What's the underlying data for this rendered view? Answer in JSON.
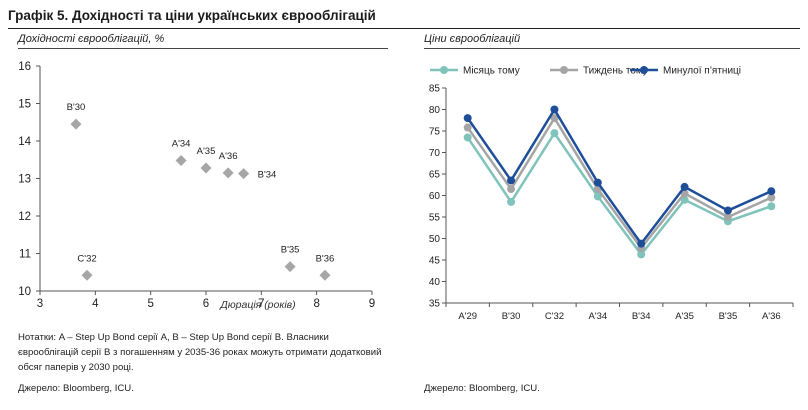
{
  "header": {
    "title": "Графік 5. Дохідності та ціни українських єврооблігацій"
  },
  "left_panel": {
    "subtitle": "Дохідності єврооблігацій, %",
    "note": "Нотатки: A – Step Up Bond серії A, B – Step Up Bond серії B. Власники єврооблігацій серії B з погашенням у 2035-36 роках можуть отримати додатковий обсяг паперів у 2030 році.",
    "source": "Джерело: Bloomberg, ICU."
  },
  "right_panel": {
    "subtitle": "Ціни єврооблігацій",
    "source": "Джерело: Bloomberg, ICU."
  },
  "colors": {
    "scatter_marker": "#a6a6a6",
    "month_ago": "#7fc3bb",
    "week_ago": "#a5a5a5",
    "last_friday": "#1f4e99",
    "axis": "#555555"
  },
  "chart_data": [
    {
      "type": "scatter",
      "title": "Дохідності єврооблігацій, %",
      "xlabel": "Дюрація (років)",
      "ylabel": "",
      "xlim": [
        3,
        9
      ],
      "ylim": [
        10,
        16
      ],
      "xticks": [
        3,
        4,
        5,
        6,
        7,
        8,
        9
      ],
      "yticks": [
        10,
        11,
        12,
        13,
        14,
        15,
        16
      ],
      "points": [
        {
          "label": "B'30",
          "x": 3.65,
          "y": 14.45
        },
        {
          "label": "C'32",
          "x": 3.85,
          "y": 10.42
        },
        {
          "label": "A'34",
          "x": 5.55,
          "y": 13.48
        },
        {
          "label": "A'35",
          "x": 6.0,
          "y": 13.28
        },
        {
          "label": "A'36",
          "x": 6.4,
          "y": 13.15
        },
        {
          "label": "B'34",
          "x": 6.68,
          "y": 13.13
        },
        {
          "label": "B'35",
          "x": 7.52,
          "y": 10.65
        },
        {
          "label": "B'36",
          "x": 8.15,
          "y": 10.42
        }
      ]
    },
    {
      "type": "line",
      "title": "Ціни єврооблігацій",
      "categories": [
        "A'29",
        "B'30",
        "C'32",
        "A'34",
        "B'34",
        "A'35",
        "B'35",
        "A'36"
      ],
      "ylim": [
        35,
        85
      ],
      "yticks": [
        35,
        40,
        45,
        50,
        55,
        60,
        65,
        70,
        75,
        80,
        85
      ],
      "legend_position": "top",
      "series": [
        {
          "name": "Місяць тому",
          "values": [
            73.5,
            58.5,
            74.5,
            59.8,
            46.3,
            59.0,
            54.0,
            57.5
          ]
        },
        {
          "name": "Тиждень тому",
          "values": [
            75.8,
            61.5,
            78.0,
            61.5,
            47.8,
            60.5,
            55.0,
            59.5
          ]
        },
        {
          "name": "Минулої п’ятниці",
          "values": [
            78.0,
            63.5,
            80.0,
            63.0,
            48.8,
            62.0,
            56.5,
            61.0
          ]
        }
      ]
    }
  ]
}
